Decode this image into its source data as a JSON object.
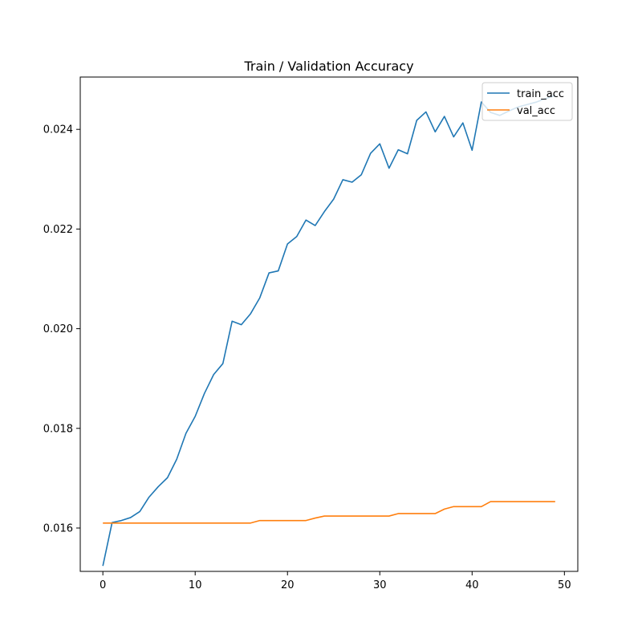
{
  "chart_data": {
    "type": "line",
    "title": "Train / Validation Accuracy",
    "xlabel": "",
    "ylabel": "",
    "xlim": [
      -2.45,
      51.45
    ],
    "ylim": [
      0.01513,
      0.02505
    ],
    "xticks": [
      0,
      10,
      20,
      30,
      40,
      50
    ],
    "yticks": [
      0.016,
      0.018,
      0.02,
      0.022,
      0.024
    ],
    "xtick_labels": [
      "0",
      "10",
      "20",
      "30",
      "40",
      "50"
    ],
    "ytick_labels": [
      "0.016",
      "0.018",
      "0.020",
      "0.022",
      "0.024"
    ],
    "grid": false,
    "legend_position": "top-right",
    "x": [
      0,
      1,
      2,
      3,
      4,
      5,
      6,
      7,
      8,
      9,
      10,
      11,
      12,
      13,
      14,
      15,
      16,
      17,
      18,
      19,
      20,
      21,
      22,
      23,
      24,
      25,
      26,
      27,
      28,
      29,
      30,
      31,
      32,
      33,
      34,
      35,
      36,
      37,
      38,
      39,
      40,
      41,
      42,
      43,
      44,
      45,
      46,
      47,
      48,
      49
    ],
    "series": [
      {
        "name": "train_acc",
        "color": "#1f77b4",
        "values": [
          0.01524,
          0.01611,
          0.01615,
          0.01621,
          0.01633,
          0.01662,
          0.01683,
          0.01701,
          0.01738,
          0.0179,
          0.01824,
          0.0187,
          0.01908,
          0.0193,
          0.02015,
          0.02008,
          0.0203,
          0.02062,
          0.02112,
          0.02116,
          0.0217,
          0.02185,
          0.02218,
          0.02207,
          0.02235,
          0.0226,
          0.02299,
          0.02294,
          0.02309,
          0.02352,
          0.02371,
          0.02322,
          0.02359,
          0.02351,
          0.02418,
          0.02435,
          0.02395,
          0.02426,
          0.02385,
          0.02413,
          0.02358,
          0.02455,
          0.02434,
          0.02428,
          0.02437,
          0.02445,
          0.0245,
          0.02455,
          0.02462,
          0.02468
        ]
      },
      {
        "name": "val_acc",
        "color": "#ff7f0e",
        "values": [
          0.0161,
          0.0161,
          0.0161,
          0.0161,
          0.0161,
          0.0161,
          0.0161,
          0.0161,
          0.0161,
          0.0161,
          0.0161,
          0.0161,
          0.0161,
          0.0161,
          0.0161,
          0.0161,
          0.0161,
          0.01615,
          0.01615,
          0.01615,
          0.01615,
          0.01615,
          0.01615,
          0.0162,
          0.01624,
          0.01624,
          0.01624,
          0.01624,
          0.01624,
          0.01624,
          0.01624,
          0.01624,
          0.01629,
          0.01629,
          0.01629,
          0.01629,
          0.01629,
          0.01638,
          0.01643,
          0.01643,
          0.01643,
          0.01643,
          0.01653,
          0.01653,
          0.01653,
          0.01653,
          0.01653,
          0.01653,
          0.01653,
          0.01653
        ]
      }
    ]
  }
}
